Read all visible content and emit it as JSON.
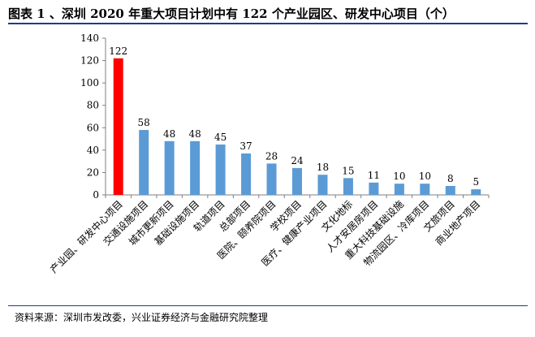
{
  "title": "图表 1 、深圳 2020 年重大项目计划中有 122 个产业园区、研发中心项目（个）",
  "source": "资料来源：深圳市发改委，兴业证券经济与金融研究院整理",
  "chart_data": {
    "type": "bar",
    "title": "",
    "xlabel": "",
    "ylabel": "",
    "ylim": [
      0,
      140
    ],
    "yticks": [
      0,
      20,
      40,
      60,
      80,
      100,
      120,
      140
    ],
    "grid": false,
    "legend": "none",
    "categories": [
      "产业园、研发中心项目",
      "交通设施项目",
      "城市更新项目",
      "基础设施项目",
      "轨道项目",
      "总部项目",
      "医院、颐养院项目",
      "学校项目",
      "医疗、健康产业项目",
      "文化地标",
      "人才安居房项目",
      "重大科技基础设施",
      "物流园区、冷库项目",
      "文旅项目",
      "商业地产项目"
    ],
    "values": [
      122,
      58,
      48,
      48,
      45,
      37,
      28,
      24,
      18,
      15,
      11,
      10,
      10,
      8,
      5
    ],
    "colors": {
      "highlight": "#ff0000",
      "bar": "#5b9bd5",
      "axis": "#7f7f7f"
    },
    "highlight_index": 0
  }
}
